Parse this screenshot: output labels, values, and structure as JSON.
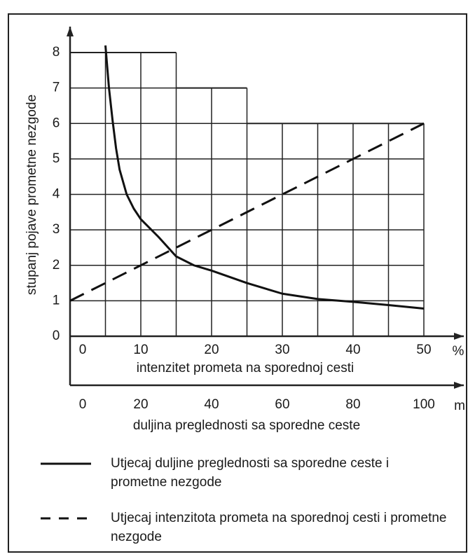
{
  "chart_data": {
    "type": "line",
    "ylabel": "stupanj pojave prometne nezgode",
    "xlabel": "intenzitet prometa na sporednoj cesti",
    "x2label": "duljina preglednosti sa sporedne ceste",
    "xunit": "%",
    "x2unit": "m",
    "xlim": [
      0,
      50
    ],
    "xticks": [
      0,
      10,
      20,
      30,
      40,
      50
    ],
    "x2lim": [
      0,
      100
    ],
    "x2ticks": [
      0,
      20,
      40,
      60,
      80,
      100
    ],
    "ylim": [
      0,
      8
    ],
    "yticks": [
      0,
      1,
      2,
      3,
      4,
      5,
      6,
      7,
      8
    ],
    "grid": true,
    "grid_x": [
      0,
      5,
      10,
      15,
      20,
      25,
      30,
      35,
      40,
      45,
      50
    ],
    "steps": {
      "bins": [
        0,
        15,
        25,
        50
      ],
      "values": [
        8,
        7,
        6
      ]
    },
    "series": [
      {
        "name": "Utjecaj duljine preglednosti sa sporedne ceste i prometne nezgode",
        "color": "#111111",
        "style": "solid",
        "x_axis": "x2",
        "x": [
          10,
          11,
          12,
          13,
          14,
          16,
          18,
          20,
          25,
          30,
          35,
          40,
          50,
          60,
          70,
          80,
          90,
          100
        ],
        "values": [
          8.2,
          7.0,
          6.1,
          5.3,
          4.7,
          4.0,
          3.6,
          3.3,
          2.8,
          2.25,
          2.0,
          1.85,
          1.5,
          1.2,
          1.05,
          0.97,
          0.88,
          0.78
        ]
      },
      {
        "name": "Utjecaj intenzitota prometa na sporednoj cesti i prometne nezgode",
        "color": "#111111",
        "style": "dashed",
        "x": [
          0,
          50
        ],
        "values": [
          1,
          6
        ]
      }
    ]
  }
}
